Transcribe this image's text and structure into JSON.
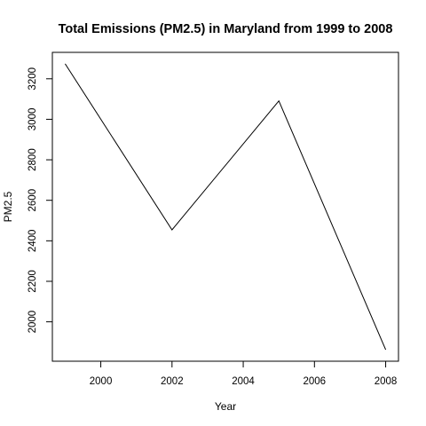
{
  "chart_data": {
    "type": "line",
    "title": "Total Emissions (PM2.5) in Maryland from 1999 to 2008",
    "xlabel": "Year",
    "ylabel": "PM2.5",
    "x": [
      1999,
      2002,
      2005,
      2008
    ],
    "series": [
      {
        "values": [
          3274,
          2454,
          3091,
          1862
        ]
      }
    ],
    "xticks": [
      2000,
      2002,
      2004,
      2006,
      2008
    ],
    "yticks": [
      2000,
      2200,
      2400,
      2600,
      2800,
      3000,
      3200
    ],
    "xlim": [
      1998.64,
      2008.36
    ],
    "ylim": [
      1805.5,
      3330.5
    ],
    "grid": false,
    "line_color": "#000000"
  }
}
